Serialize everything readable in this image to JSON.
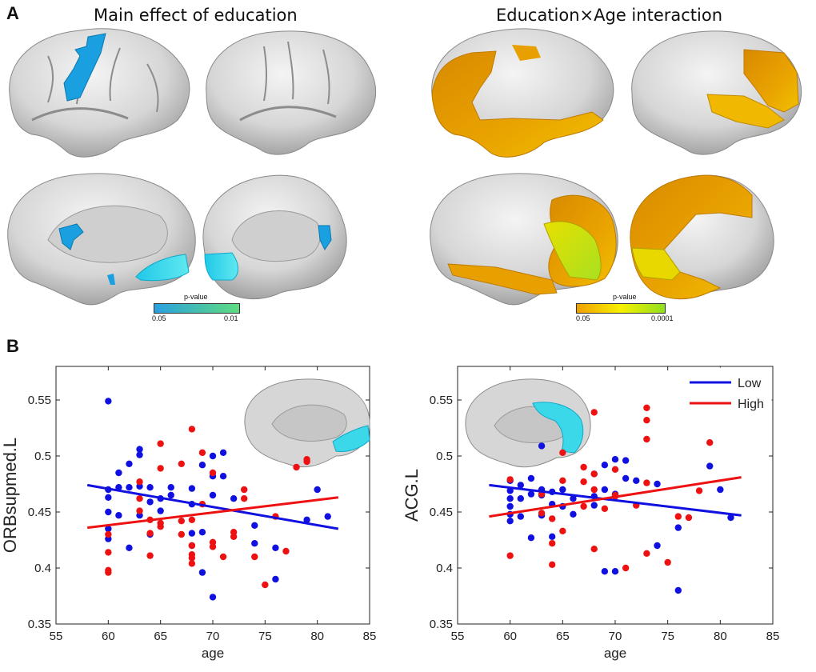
{
  "panel_a": {
    "letter": "A",
    "left_title": "Main effect of education",
    "right_title": "Education×Age interaction",
    "colorbar_left": {
      "label": "p-value",
      "min": "0.05",
      "max": "0.01",
      "from": "#2aa0e0",
      "to": "#5fdc80"
    },
    "colorbar_right": {
      "label": "p-value",
      "min": "0.05",
      "max": "0.0001",
      "from": "#f0a000",
      "mid": "#f8f000",
      "to": "#90e020"
    }
  },
  "panel_b": {
    "letter": "B"
  },
  "colors": {
    "low": "#1010e0",
    "high": "#ee1111",
    "cortex": "#d8d8d8",
    "cyan": "#3ad8e8",
    "blue_map": "#1aa0e0",
    "orange_map": "#e8a000",
    "yellow_map": "#e8e020"
  },
  "chart_data": [
    {
      "type": "scatter",
      "title": "",
      "xlabel": "age",
      "ylabel": "ORBsupmed.L",
      "xlim": [
        55,
        85
      ],
      "ylim": [
        0.35,
        0.58
      ],
      "xticks": [
        "55",
        "60",
        "65",
        "70",
        "75",
        "80",
        "85"
      ],
      "yticks": [
        "0.35",
        "0.4",
        "0.45",
        "0.5",
        "0.55"
      ],
      "series": [
        {
          "name": "Low",
          "color": "#1010e0",
          "points": [
            [
              60,
              0.549
            ],
            [
              60,
              0.47
            ],
            [
              60,
              0.463
            ],
            [
              60,
              0.45
            ],
            [
              60,
              0.435
            ],
            [
              60,
              0.426
            ],
            [
              61,
              0.485
            ],
            [
              61,
              0.472
            ],
            [
              61,
              0.447
            ],
            [
              62,
              0.493
            ],
            [
              62,
              0.472
            ],
            [
              62,
              0.418
            ],
            [
              63,
              0.506
            ],
            [
              63,
              0.501
            ],
            [
              63,
              0.473
            ],
            [
              63,
              0.447
            ],
            [
              64,
              0.459
            ],
            [
              64,
              0.43
            ],
            [
              64,
              0.472
            ],
            [
              65,
              0.462
            ],
            [
              65,
              0.451
            ],
            [
              66,
              0.472
            ],
            [
              66,
              0.465
            ],
            [
              68,
              0.471
            ],
            [
              68,
              0.457
            ],
            [
              68,
              0.431
            ],
            [
              68,
              0.42
            ],
            [
              69,
              0.492
            ],
            [
              69,
              0.432
            ],
            [
              69,
              0.396
            ],
            [
              70,
              0.5
            ],
            [
              70,
              0.482
            ],
            [
              70,
              0.465
            ],
            [
              70,
              0.374
            ],
            [
              71,
              0.503
            ],
            [
              71,
              0.482
            ],
            [
              72,
              0.462
            ],
            [
              74,
              0.438
            ],
            [
              74,
              0.422
            ],
            [
              76,
              0.418
            ],
            [
              76,
              0.39
            ],
            [
              79,
              0.443
            ],
            [
              80,
              0.47
            ],
            [
              81,
              0.446
            ]
          ]
        },
        {
          "name": "High",
          "color": "#ee1111",
          "points": [
            [
              60,
              0.43
            ],
            [
              60,
              0.414
            ],
            [
              60,
              0.398
            ],
            [
              60,
              0.396
            ],
            [
              63,
              0.477
            ],
            [
              63,
              0.462
            ],
            [
              63,
              0.451
            ],
            [
              64,
              0.443
            ],
            [
              64,
              0.431
            ],
            [
              64,
              0.411
            ],
            [
              65,
              0.511
            ],
            [
              65,
              0.489
            ],
            [
              65,
              0.44
            ],
            [
              65,
              0.437
            ],
            [
              67,
              0.493
            ],
            [
              67,
              0.442
            ],
            [
              67,
              0.43
            ],
            [
              68,
              0.524
            ],
            [
              68,
              0.443
            ],
            [
              68,
              0.42
            ],
            [
              68,
              0.412
            ],
            [
              68,
              0.409
            ],
            [
              68,
              0.404
            ],
            [
              69,
              0.503
            ],
            [
              69,
              0.457
            ],
            [
              70,
              0.485
            ],
            [
              70,
              0.423
            ],
            [
              70,
              0.419
            ],
            [
              71,
              0.41
            ],
            [
              72,
              0.432
            ],
            [
              72,
              0.428
            ],
            [
              73,
              0.47
            ],
            [
              73,
              0.462
            ],
            [
              74,
              0.41
            ],
            [
              75,
              0.385
            ],
            [
              76,
              0.446
            ],
            [
              77,
              0.415
            ],
            [
              78,
              0.49
            ],
            [
              79,
              0.497
            ],
            [
              79,
              0.495
            ]
          ]
        }
      ],
      "fit_lines": [
        {
          "name": "Low",
          "color": "#1010e0",
          "x": [
            58,
            82
          ],
          "y": [
            0.474,
            0.435
          ]
        },
        {
          "name": "High",
          "color": "#ee1111",
          "x": [
            58,
            82
          ],
          "y": [
            0.436,
            0.463
          ]
        }
      ],
      "legend": "none",
      "inset": "medial brain, cyan orbital region"
    },
    {
      "type": "scatter",
      "title": "",
      "xlabel": "age",
      "ylabel": "ACG.L",
      "xlim": [
        55,
        85
      ],
      "ylim": [
        0.35,
        0.58
      ],
      "xticks": [
        "55",
        "60",
        "65",
        "70",
        "75",
        "80",
        "85"
      ],
      "yticks": [
        "0.35",
        "0.4",
        "0.45",
        "0.5",
        "0.55"
      ],
      "legend_labels": [
        "Low",
        "High"
      ],
      "legend": "top-right",
      "series": [
        {
          "name": "Low",
          "color": "#1010e0",
          "points": [
            [
              60,
              0.478
            ],
            [
              60,
              0.469
            ],
            [
              60,
              0.462
            ],
            [
              60,
              0.455
            ],
            [
              60,
              0.448
            ],
            [
              60,
              0.442
            ],
            [
              61,
              0.474
            ],
            [
              61,
              0.462
            ],
            [
              61,
              0.446
            ],
            [
              62,
              0.48
            ],
            [
              62,
              0.466
            ],
            [
              62,
              0.427
            ],
            [
              63,
              0.509
            ],
            [
              63,
              0.47
            ],
            [
              63,
              0.465
            ],
            [
              63,
              0.447
            ],
            [
              64,
              0.468
            ],
            [
              64,
              0.457
            ],
            [
              64,
              0.428
            ],
            [
              65,
              0.47
            ],
            [
              65,
              0.455
            ],
            [
              66,
              0.462
            ],
            [
              66,
              0.448
            ],
            [
              68,
              0.484
            ],
            [
              68,
              0.464
            ],
            [
              68,
              0.456
            ],
            [
              69,
              0.492
            ],
            [
              69,
              0.47
            ],
            [
              69,
              0.397
            ],
            [
              70,
              0.497
            ],
            [
              70,
              0.466
            ],
            [
              70,
              0.397
            ],
            [
              71,
              0.496
            ],
            [
              71,
              0.48
            ],
            [
              72,
              0.478
            ],
            [
              74,
              0.475
            ],
            [
              74,
              0.42
            ],
            [
              76,
              0.436
            ],
            [
              76,
              0.38
            ],
            [
              79,
              0.491
            ],
            [
              80,
              0.47
            ],
            [
              81,
              0.445
            ]
          ]
        },
        {
          "name": "High",
          "color": "#ee1111",
          "points": [
            [
              60,
              0.479
            ],
            [
              60,
              0.411
            ],
            [
              63,
              0.466
            ],
            [
              63,
              0.449
            ],
            [
              64,
              0.444
            ],
            [
              64,
              0.422
            ],
            [
              64,
              0.403
            ],
            [
              65,
              0.503
            ],
            [
              65,
              0.478
            ],
            [
              65,
              0.433
            ],
            [
              67,
              0.49
            ],
            [
              67,
              0.477
            ],
            [
              67,
              0.455
            ],
            [
              68,
              0.539
            ],
            [
              68,
              0.484
            ],
            [
              68,
              0.47
            ],
            [
              68,
              0.417
            ],
            [
              69,
              0.453
            ],
            [
              70,
              0.488
            ],
            [
              70,
              0.465
            ],
            [
              70,
              0.464
            ],
            [
              71,
              0.4
            ],
            [
              72,
              0.456
            ],
            [
              73,
              0.543
            ],
            [
              73,
              0.532
            ],
            [
              73,
              0.515
            ],
            [
              73,
              0.476
            ],
            [
              73,
              0.413
            ],
            [
              75,
              0.405
            ],
            [
              76,
              0.446
            ],
            [
              77,
              0.445
            ],
            [
              78,
              0.469
            ],
            [
              79,
              0.512
            ]
          ]
        }
      ],
      "fit_lines": [
        {
          "name": "Low",
          "color": "#1010e0",
          "x": [
            58,
            82
          ],
          "y": [
            0.474,
            0.447
          ]
        },
        {
          "name": "High",
          "color": "#ee1111",
          "x": [
            58,
            82
          ],
          "y": [
            0.446,
            0.481
          ]
        }
      ],
      "inset": "medial brain, cyan cingulate region"
    }
  ]
}
